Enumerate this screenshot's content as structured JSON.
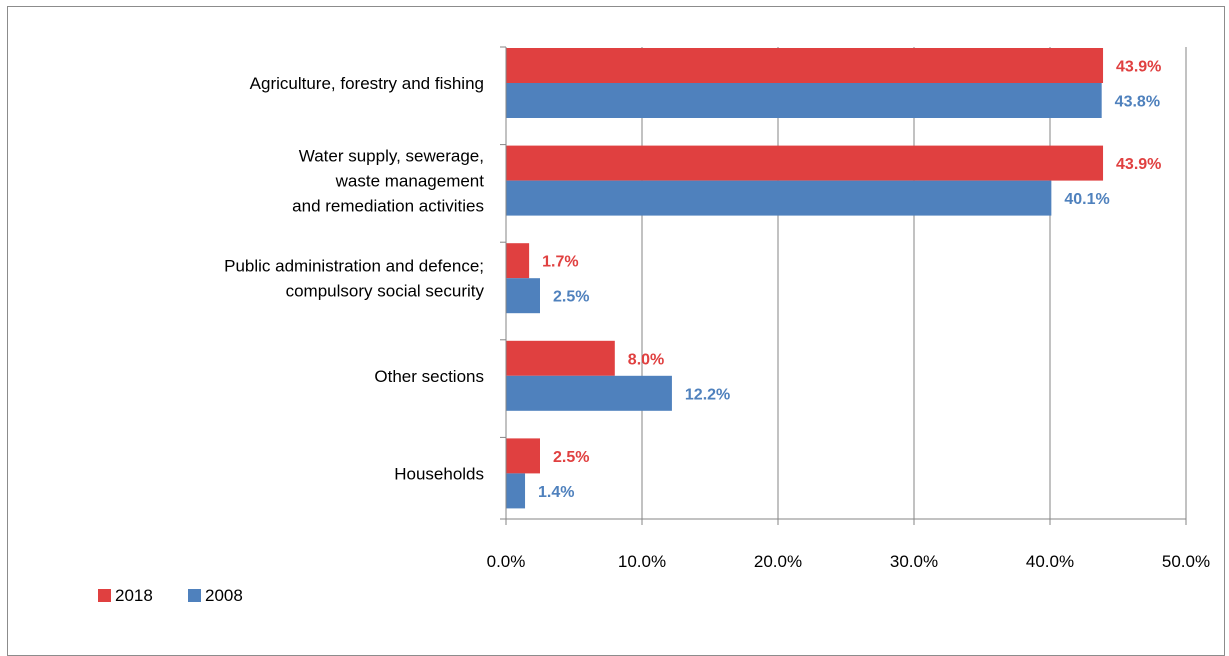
{
  "chart_data": {
    "type": "bar",
    "orientation": "horizontal",
    "title": "",
    "xlabel": "",
    "ylabel": "",
    "categories": [
      [
        "Agriculture, forestry and fishing"
      ],
      [
        "Water supply, sewerage,",
        "waste management",
        "and remediation activities"
      ],
      [
        "Public administration and defence;",
        "compulsory social security"
      ],
      [
        "Other sections"
      ],
      [
        "Households"
      ]
    ],
    "series": [
      {
        "name": "2018",
        "color": "#e04040",
        "values": [
          43.9,
          43.9,
          1.7,
          8.0,
          2.5
        ],
        "labels": [
          "43.9%",
          "43.9%",
          "1.7%",
          "8.0%",
          "2.5%"
        ]
      },
      {
        "name": "2008",
        "color": "#4f81bd",
        "values": [
          43.8,
          40.1,
          2.5,
          12.2,
          1.4
        ],
        "labels": [
          "43.8%",
          "40.1%",
          "2.5%",
          "12.2%",
          "1.4%"
        ]
      }
    ],
    "xlim": [
      0,
      50
    ],
    "ticks": [
      0,
      10,
      20,
      30,
      40,
      50
    ],
    "tick_labels": [
      "0.0%",
      "10.0%",
      "20.0%",
      "30.0%",
      "40.0%",
      "50.0%"
    ],
    "grid": true,
    "legend_position": "bottom-left",
    "gridline_color": "#868686",
    "axis_color": "#868686"
  }
}
